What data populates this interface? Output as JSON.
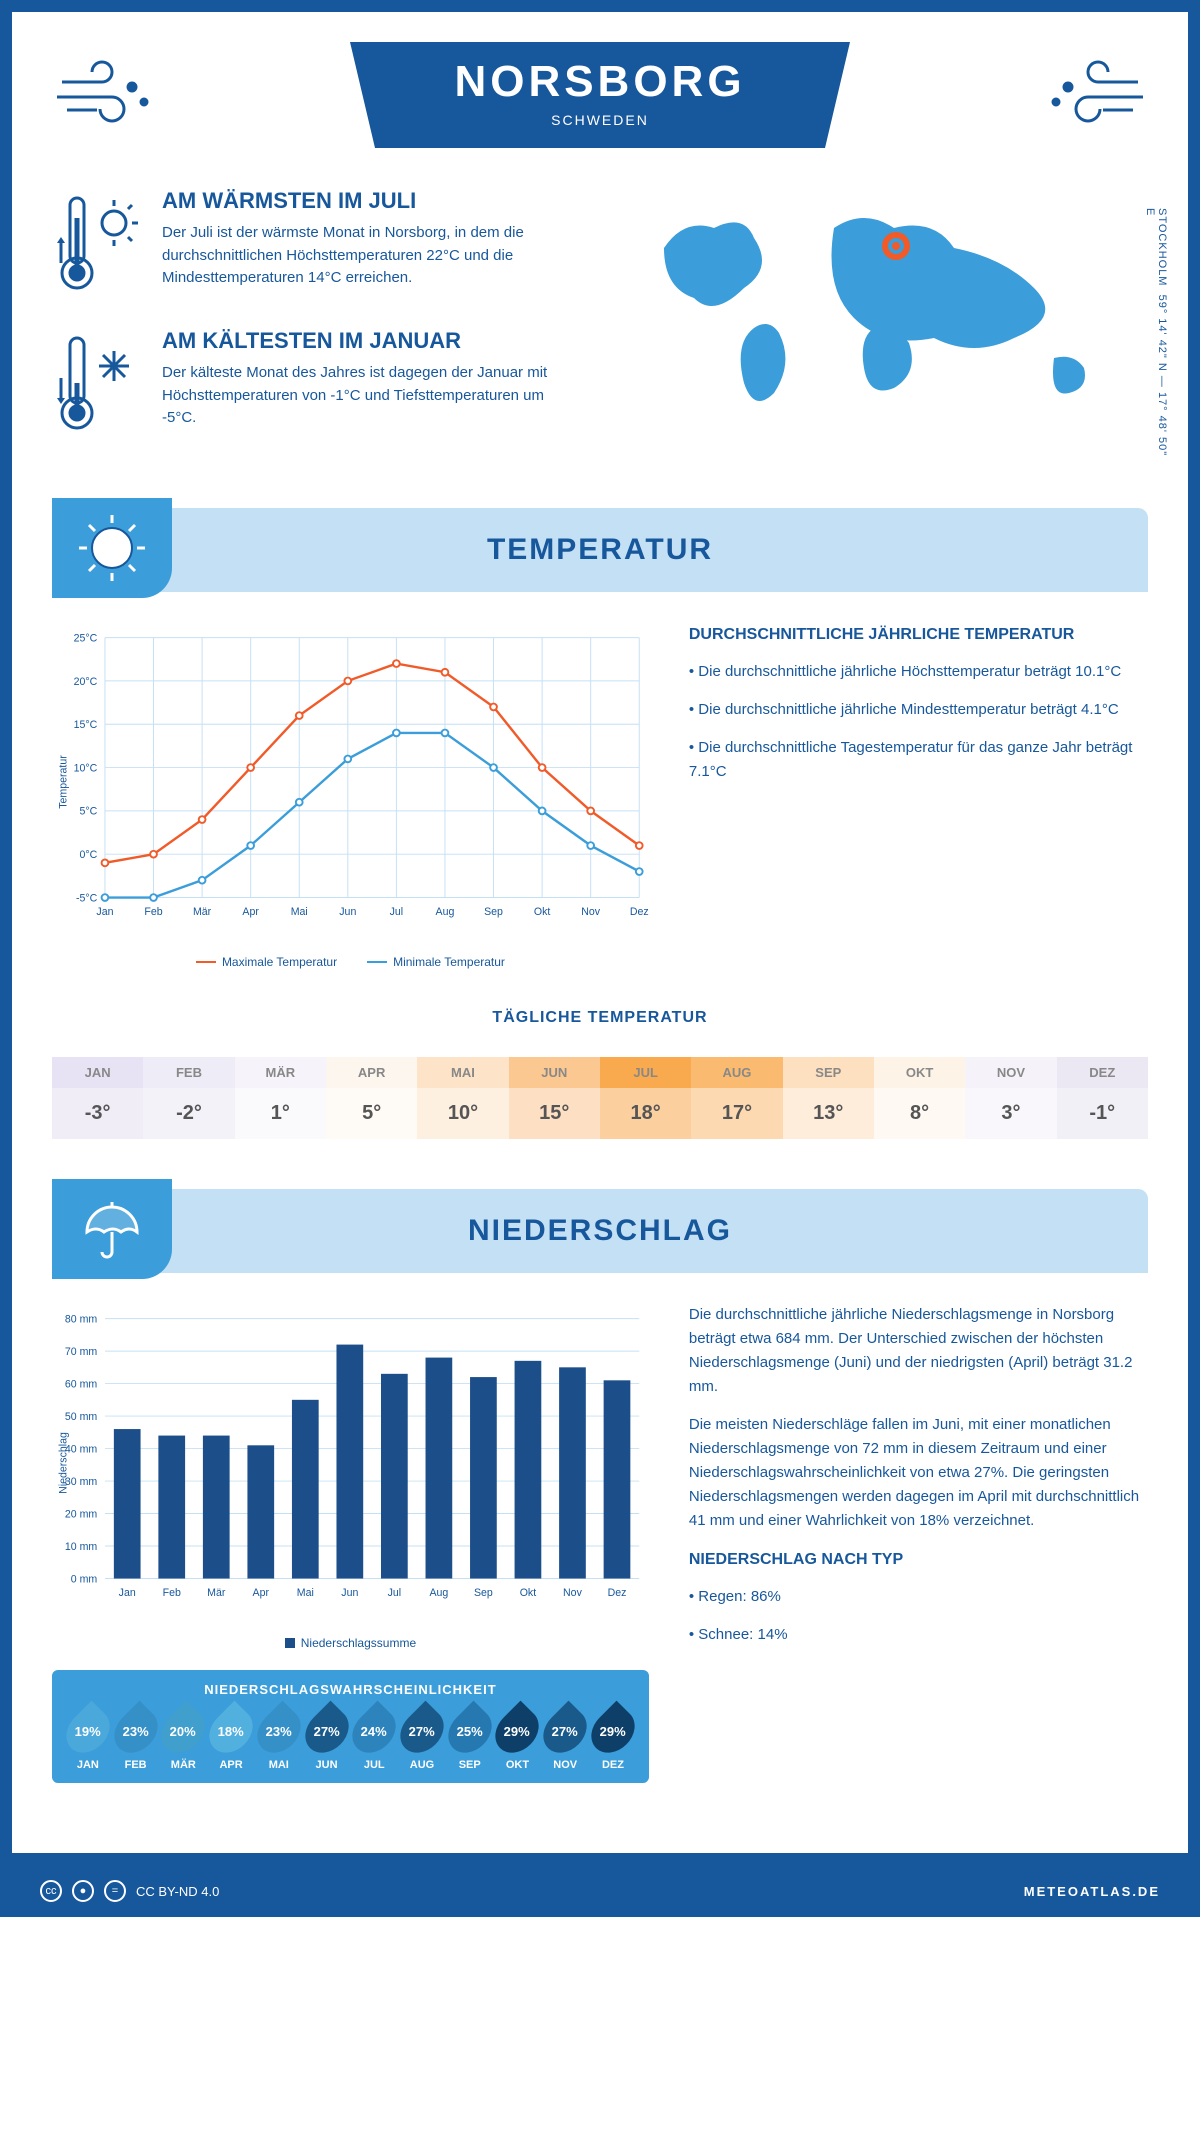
{
  "header": {
    "city": "NORSBORG",
    "country": "SCHWEDEN"
  },
  "coords": {
    "text": "59° 14' 42\" N — 17° 48' 50\" E",
    "nearest": "STOCKHOLM"
  },
  "facts": {
    "warm": {
      "title": "AM WÄRMSTEN IM JULI",
      "text": "Der Juli ist der wärmste Monat in Norsborg, in dem die durchschnittlichen Höchsttemperaturen 22°C und die Mindesttemperaturen 14°C erreichen."
    },
    "cold": {
      "title": "AM KÄLTESTEN IM JANUAR",
      "text": "Der kälteste Monat des Jahres ist dagegen der Januar mit Höchsttemperaturen von -1°C und Tiefsttemperaturen um -5°C."
    }
  },
  "temp_section": {
    "title": "TEMPERATUR",
    "chart": {
      "type": "line",
      "months": [
        "Jan",
        "Feb",
        "Mär",
        "Apr",
        "Mai",
        "Jun",
        "Jul",
        "Aug",
        "Sep",
        "Okt",
        "Nov",
        "Dez"
      ],
      "max": [
        -1,
        0,
        4,
        10,
        16,
        20,
        22,
        21,
        17,
        10,
        5,
        1
      ],
      "min": [
        -5,
        -5,
        -3,
        1,
        6,
        11,
        14,
        14,
        10,
        5,
        1,
        -2
      ],
      "max_color": "#f15a29",
      "min_color": "#3b9dd9",
      "ylim": [
        -5,
        25
      ],
      "ystep": 5,
      "ylabel": "Temperatur",
      "grid_color": "#c4e0f5",
      "legend_max": "Maximale Temperatur",
      "legend_min": "Minimale Temperatur"
    },
    "side": {
      "title": "DURCHSCHNITTLICHE JÄHRLICHE TEMPERATUR",
      "b1": "• Die durchschnittliche jährliche Höchsttemperatur beträgt 10.1°C",
      "b2": "• Die durchschnittliche jährliche Mindesttemperatur beträgt 4.1°C",
      "b3": "• Die durchschnittliche Tagestemperatur für das ganze Jahr beträgt 7.1°C"
    },
    "daily": {
      "title": "TÄGLICHE TEMPERATUR",
      "months": [
        "JAN",
        "FEB",
        "MÄR",
        "APR",
        "MAI",
        "JUN",
        "JUL",
        "AUG",
        "SEP",
        "OKT",
        "NOV",
        "DEZ"
      ],
      "values": [
        "-3°",
        "-2°",
        "1°",
        "5°",
        "10°",
        "15°",
        "18°",
        "17°",
        "13°",
        "8°",
        "3°",
        "-1°"
      ],
      "head_colors": [
        "#e8e3f4",
        "#eeecf6",
        "#f6f4fa",
        "#fdf6ee",
        "#fde4c8",
        "#fbc891",
        "#f9a94e",
        "#faba70",
        "#fde0bf",
        "#fdf3e7",
        "#f5f3f9",
        "#ebe8f3"
      ],
      "val_colors": [
        "#f0edf7",
        "#f4f2f9",
        "#faf9fc",
        "#fefaf5",
        "#fef0e0",
        "#fde0c3",
        "#fccf9f",
        "#fdd9b2",
        "#feeddb",
        "#fef9f2",
        "#f9f7fb",
        "#f2f0f7"
      ]
    }
  },
  "rain_section": {
    "title": "NIEDERSCHLAG",
    "chart": {
      "type": "bar",
      "months": [
        "Jan",
        "Feb",
        "Mär",
        "Apr",
        "Mai",
        "Jun",
        "Jul",
        "Aug",
        "Sep",
        "Okt",
        "Nov",
        "Dez"
      ],
      "values": [
        46,
        44,
        44,
        41,
        55,
        72,
        63,
        68,
        62,
        67,
        65,
        61
      ],
      "bar_color": "#1c4e8a",
      "ylim": [
        0,
        80
      ],
      "ystep": 10,
      "ylabel": "Niederschlag",
      "grid_color": "#c4e0f5",
      "legend": "Niederschlagssumme"
    },
    "prob": {
      "title": "NIEDERSCHLAGSWAHRSCHEINLICHKEIT",
      "months": [
        "JAN",
        "FEB",
        "MÄR",
        "APR",
        "MAI",
        "JUN",
        "JUL",
        "AUG",
        "SEP",
        "OKT",
        "NOV",
        "DEZ"
      ],
      "values": [
        "19%",
        "23%",
        "20%",
        "18%",
        "23%",
        "27%",
        "24%",
        "27%",
        "25%",
        "29%",
        "27%",
        "29%"
      ],
      "colors": [
        "#4aa8db",
        "#3690c8",
        "#419fce",
        "#52b0df",
        "#3690c8",
        "#1a5a8a",
        "#2d84bd",
        "#1a5a8a",
        "#2579b0",
        "#0e3f68",
        "#1a5a8a",
        "#0e3f68"
      ]
    },
    "side": {
      "p1": "Die durchschnittliche jährliche Niederschlagsmenge in Norsborg beträgt etwa 684 mm. Der Unterschied zwischen der höchsten Niederschlagsmenge (Juni) und der niedrigsten (April) beträgt 31.2 mm.",
      "p2": "Die meisten Niederschläge fallen im Juni, mit einer monatlichen Niederschlagsmenge von 72 mm in diesem Zeitraum und einer Niederschlagswahrscheinlichkeit von etwa 27%. Die geringsten Niederschlagsmengen werden dagegen im April mit durchschnittlich 41 mm und einer Wahrlichkeit von 18% verzeichnet.",
      "type_title": "NIEDERSCHLAG NACH TYP",
      "t1": "• Regen: 86%",
      "t2": "• Schnee: 14%"
    }
  },
  "footer": {
    "license": "CC BY-ND 4.0",
    "site": "METEOATLAS.DE"
  }
}
